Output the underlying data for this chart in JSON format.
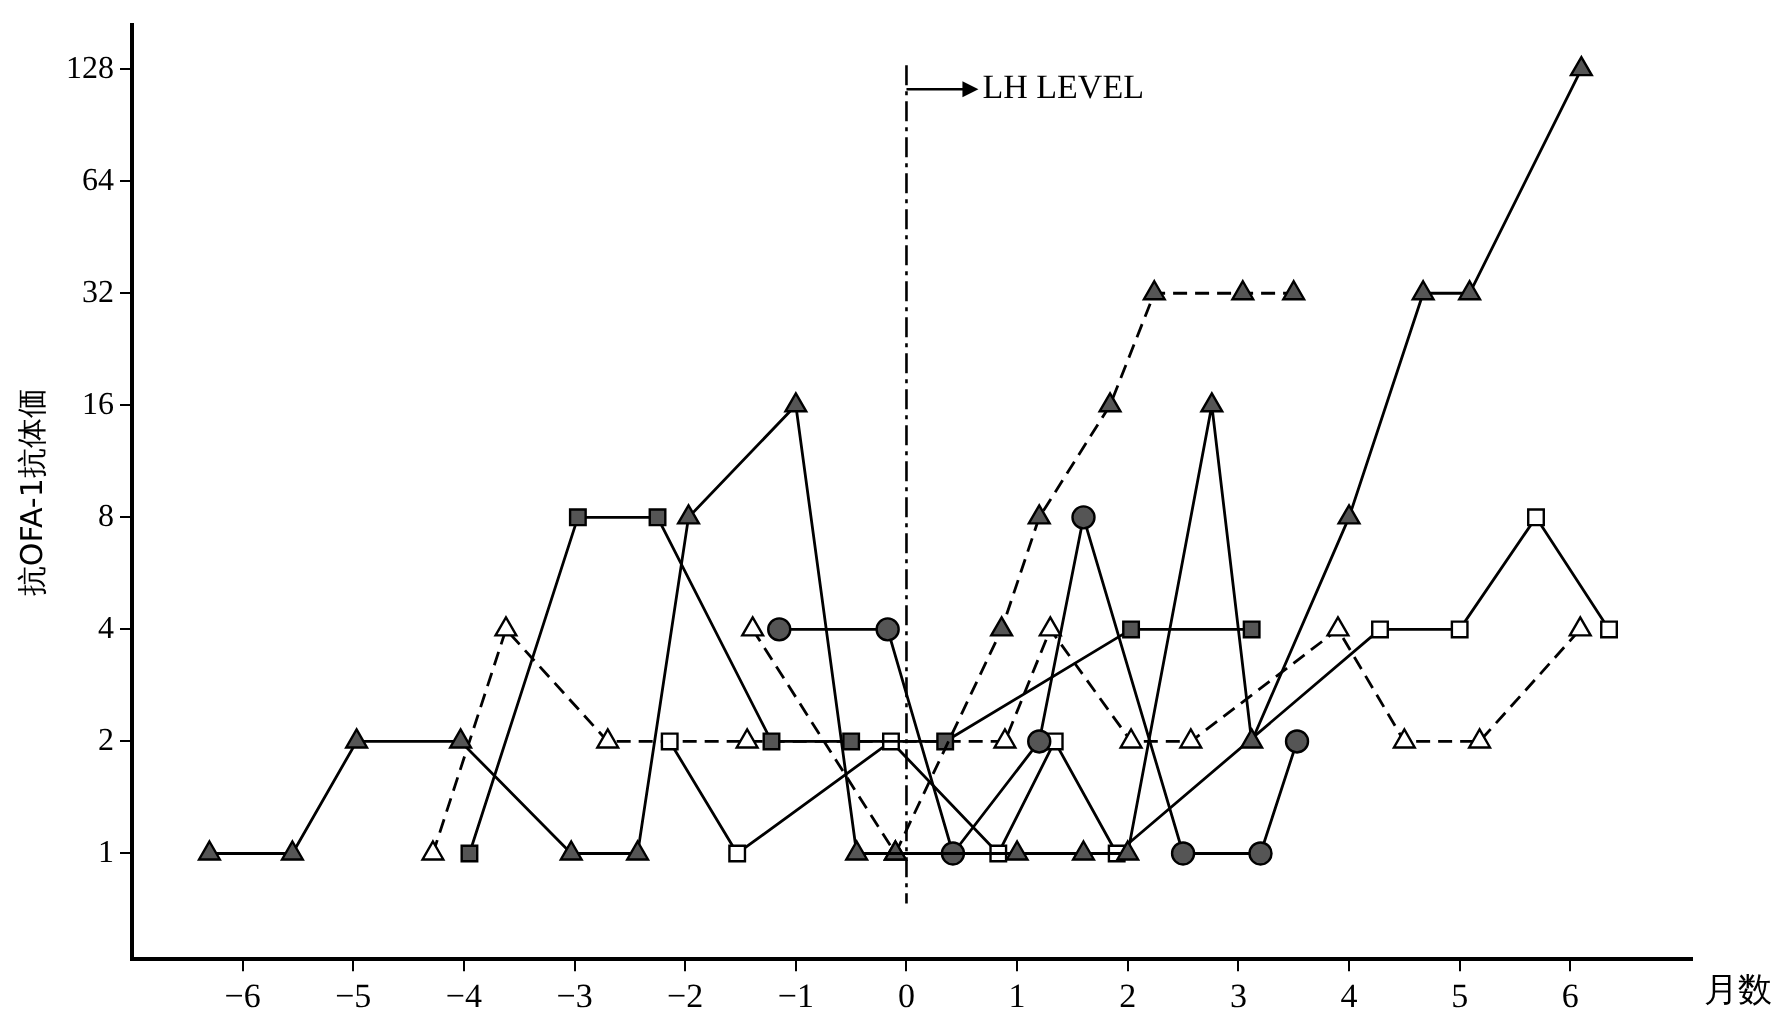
{
  "chart_data": {
    "type": "line",
    "xlabel": "月数",
    "ylabel": "抗OFA-1抗体価",
    "log": "y",
    "grid": false,
    "legend": false,
    "xlim": [
      -7,
      7.1
    ],
    "ylim": [
      0.52,
      168
    ],
    "xticks": [
      {
        "value": -6,
        "label": "−6"
      },
      {
        "value": -5,
        "label": "−5"
      },
      {
        "value": -4,
        "label": "−4"
      },
      {
        "value": -3,
        "label": "−3"
      },
      {
        "value": -2,
        "label": "−2"
      },
      {
        "value": -1,
        "label": "−1"
      },
      0,
      1,
      2,
      3,
      4,
      5,
      6
    ],
    "yticks": [
      1,
      2,
      4,
      8,
      16,
      32,
      64,
      128
    ],
    "ref_lines": [
      {
        "axis": "x",
        "value": 0,
        "label": "LH LEVEL",
        "line_style": "dashdot",
        "color": "#000000"
      }
    ],
    "series": [
      {
        "color": "#555555",
        "marker": "triangle",
        "line_style": "solid",
        "x": [
          -6.3,
          -5.55,
          -4.97,
          -4.03,
          -3.03,
          -2.43,
          -1.97,
          -1.0,
          -0.45,
          1.0,
          1.6,
          2.0,
          2.76,
          3.12,
          4.0,
          4.67,
          5.09,
          6.1
        ],
        "values": [
          1,
          1,
          2,
          2,
          1,
          1,
          8,
          16,
          1,
          1,
          1,
          1,
          16,
          2,
          8,
          32,
          32,
          128
        ]
      },
      {
        "color": "#555555",
        "marker": "triangle",
        "line_style": "dashed",
        "x": [
          -0.1,
          0.86,
          1.2,
          1.84,
          2.24,
          3.04,
          3.5
        ],
        "values": [
          1,
          4,
          8,
          16,
          32,
          32,
          32
        ]
      },
      {
        "color": "#555555",
        "marker": "square",
        "line_style": "solid",
        "x": [
          -3.95,
          -2.97,
          -2.25,
          -1.22,
          -0.5,
          0.35,
          2.03,
          3.12
        ],
        "values": [
          1,
          8,
          8,
          2,
          2,
          2,
          4,
          4
        ]
      },
      {
        "color": "#555555",
        "marker": "circle",
        "line_style": "solid",
        "x": [
          -1.15,
          -0.17,
          0.42,
          1.2,
          1.6,
          2.5,
          3.2,
          3.53
        ],
        "values": [
          4,
          4,
          1,
          2,
          8,
          1,
          1,
          2
        ]
      },
      {
        "color": "#ffffff",
        "marker": "square",
        "line_style": "solid",
        "x": [
          -2.14,
          -1.53,
          -0.14,
          0.83,
          1.34,
          1.9,
          4.28,
          5.0,
          5.69,
          6.35
        ],
        "values": [
          2,
          1,
          2,
          1,
          2,
          1,
          4,
          4,
          8,
          4
        ]
      },
      {
        "color": "#ffffff",
        "marker": "triangle",
        "line_style": "dashed",
        "x": [
          -4.28,
          -3.62,
          -2.7,
          -1.44,
          0.89,
          1.3,
          2.03,
          2.57,
          3.9,
          4.5,
          5.18,
          6.09
        ],
        "values": [
          1,
          4,
          2,
          2,
          2,
          4,
          2,
          2,
          4,
          2,
          2,
          4
        ]
      },
      {
        "color": "#ffffff",
        "marker": "triangle",
        "line_style": "dashed",
        "x": [
          -1.39,
          -0.1
        ],
        "values": [
          4,
          1
        ]
      }
    ]
  }
}
